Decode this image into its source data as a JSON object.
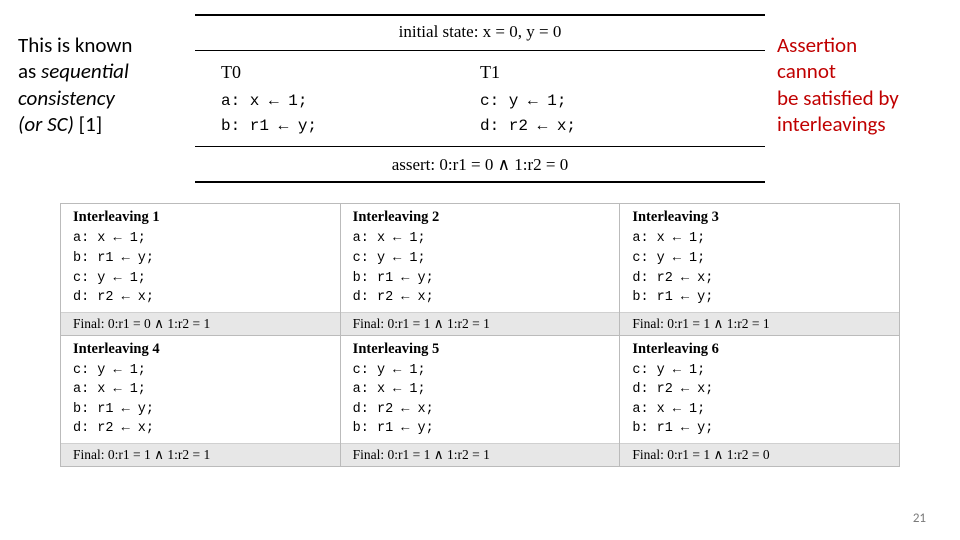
{
  "left_note": {
    "line1": "This is known",
    "line2a": "as ",
    "line2b": "sequential",
    "line3a": "consistency",
    "line4": "(or SC)",
    "line4b": " [1]"
  },
  "right_note": {
    "l1": "Assertion",
    "l2": "cannot",
    "l3": "be satisfied by",
    "l4": "interleavings"
  },
  "fig": {
    "initial": "initial state: x = 0, y = 0",
    "t0": "T0",
    "t1": "T1",
    "t0a": "a: x ← 1;",
    "t0b": "b: r1 ← y;",
    "t1c": "c: y ← 1;",
    "t1d": "d: r2 ← x;",
    "assert": "assert: 0:r1 = 0 ∧ 1:r2 = 0"
  },
  "inter": [
    {
      "title": "Interleaving 1",
      "lines": [
        "a: x ← 1;",
        "b: r1 ← y;",
        "c: y ← 1;",
        "d: r2 ← x;"
      ],
      "final": "Final: 0:r1 = 0 ∧ 1:r2 = 1"
    },
    {
      "title": "Interleaving 2",
      "lines": [
        "a: x ← 1;",
        "c: y ← 1;",
        "b: r1 ← y;",
        "d: r2 ← x;"
      ],
      "final": "Final: 0:r1 = 1 ∧ 1:r2 = 1"
    },
    {
      "title": "Interleaving 3",
      "lines": [
        "a: x ← 1;",
        "c: y ← 1;",
        "d: r2 ← x;",
        "b: r1 ← y;"
      ],
      "final": "Final: 0:r1 = 1 ∧ 1:r2 = 1"
    },
    {
      "title": "Interleaving 4",
      "lines": [
        "c: y ← 1;",
        "a: x ← 1;",
        "b: r1 ← y;",
        "d: r2 ← x;"
      ],
      "final": "Final: 0:r1 = 1 ∧ 1:r2 = 1"
    },
    {
      "title": "Interleaving 5",
      "lines": [
        "c: y ← 1;",
        "a: x ← 1;",
        "d: r2 ← x;",
        "b: r1 ← y;"
      ],
      "final": "Final: 0:r1 = 1 ∧ 1:r2 = 1"
    },
    {
      "title": "Interleaving 6",
      "lines": [
        "c: y ← 1;",
        "d: r2 ← x;",
        "a: x ← 1;",
        "b: r1 ← y;"
      ],
      "final": "Final: 0:r1 = 1 ∧ 1:r2 = 0"
    }
  ],
  "pagenum": "21"
}
